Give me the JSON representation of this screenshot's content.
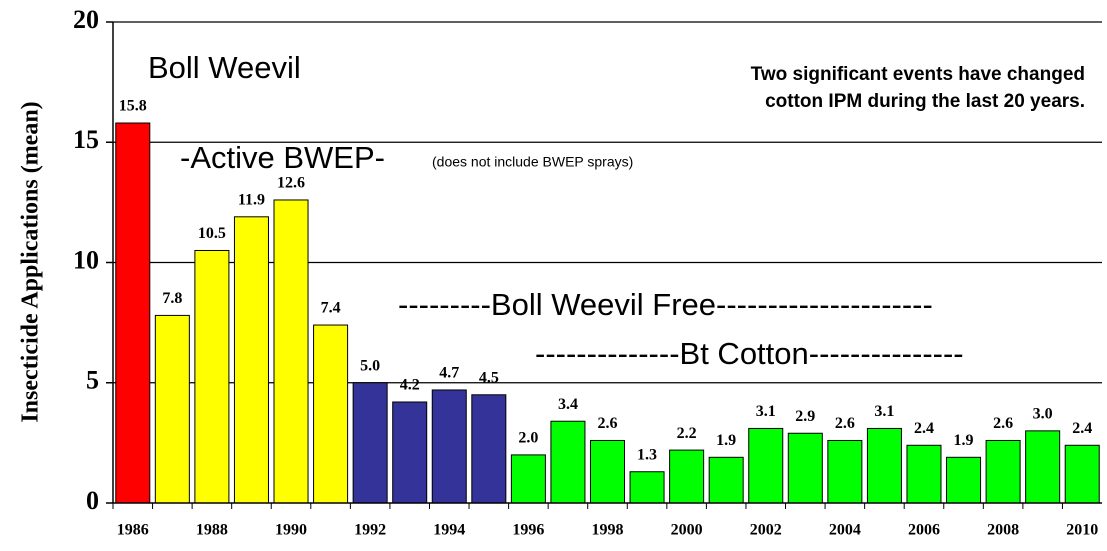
{
  "chart_data": {
    "type": "bar",
    "y_label": "Insecticide Applications (mean)",
    "categories": [
      "1986",
      null,
      "1988",
      null,
      "1990",
      null,
      "1992",
      null,
      "1994",
      null,
      "1996",
      null,
      "1998",
      null,
      "2000",
      null,
      "2002",
      null,
      "2004",
      null,
      "2006",
      null,
      "2008",
      null,
      "2010"
    ],
    "values": [
      15.8,
      7.8,
      10.5,
      11.9,
      12.6,
      7.4,
      5.0,
      4.2,
      4.7,
      4.5,
      2.0,
      3.4,
      2.6,
      1.3,
      2.2,
      1.9,
      3.1,
      2.9,
      2.6,
      3.1,
      2.4,
      1.9,
      2.6,
      3.0,
      2.4
    ],
    "value_labels": [
      "15.8",
      "7.8",
      "10.5",
      "11.9",
      "12.6",
      "7.4",
      "5.0",
      "4.2",
      "4.7",
      "4.5",
      "2.0",
      "3.4",
      "2.6",
      "1.3",
      "2.2",
      "1.9",
      "3.1",
      "2.9",
      "2.6",
      "3.1",
      "2.4",
      "1.9",
      "2.6",
      "3.0",
      "2.4"
    ],
    "colors": [
      "#ff0000",
      "#ffff00",
      "#ffff00",
      "#ffff00",
      "#ffff00",
      "#ffff00",
      "#333399",
      "#333399",
      "#333399",
      "#333399",
      "#00ff00",
      "#00ff00",
      "#00ff00",
      "#00ff00",
      "#00ff00",
      "#00ff00",
      "#00ff00",
      "#00ff00",
      "#00ff00",
      "#00ff00",
      "#00ff00",
      "#00ff00",
      "#00ff00",
      "#00ff00",
      "#00ff00"
    ],
    "ylim": [
      0,
      20
    ],
    "yticks": [
      0,
      5,
      10,
      15,
      20
    ],
    "grid": true,
    "annotations": [
      "Boll Weevil",
      "Two significant events have changed",
      "cotton IPM during the last 20 years.",
      "-Active BWEP-",
      "(does not include BWEP sprays)",
      "---------Boll Weevil Free---------------------",
      "--------------Bt Cotton---------------"
    ]
  }
}
